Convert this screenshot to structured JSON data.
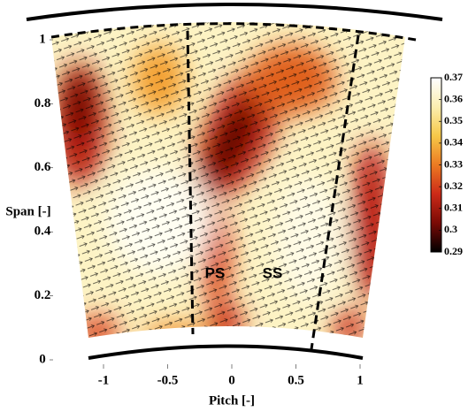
{
  "chart_data": {
    "type": "contour",
    "xlabel": "Pitch [-]",
    "ylabel": "Span [-]",
    "xlim": [
      -1.1,
      1.1
    ],
    "ylim": [
      0,
      1
    ],
    "xticks": [
      -1,
      -0.5,
      0,
      0.5,
      1
    ],
    "yticks": [
      0,
      0.2,
      0.4,
      0.6,
      0.8,
      1
    ],
    "annotations": [
      "PS",
      "SS"
    ],
    "colorbar": {
      "lim": [
        0.29,
        0.37
      ],
      "ticks": [
        0.37,
        0.36,
        0.35,
        0.34,
        0.33,
        0.32,
        0.31,
        0.3,
        0.29
      ],
      "colormap": [
        "#000000",
        "#7a0a05",
        "#cc2a18",
        "#ec7a22",
        "#f6c848",
        "#fbeeb0",
        "#ffffff"
      ]
    }
  }
}
